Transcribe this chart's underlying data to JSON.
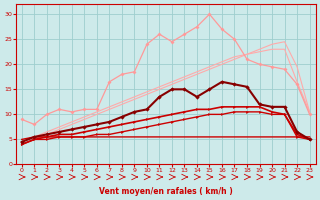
{
  "x": [
    0,
    1,
    2,
    3,
    4,
    5,
    6,
    7,
    8,
    9,
    10,
    11,
    12,
    13,
    14,
    15,
    16,
    17,
    18,
    19,
    20,
    21,
    22,
    23
  ],
  "line_dark_red_bottom": [
    4.0,
    5.0,
    5.0,
    5.5,
    5.5,
    5.5,
    6.0,
    6.0,
    6.5,
    7.0,
    7.5,
    8.0,
    8.5,
    9.0,
    9.5,
    10.0,
    10.0,
    10.5,
    10.5,
    10.5,
    10.0,
    10.0,
    5.5,
    5.0
  ],
  "line_dark_red_mid1": [
    4.0,
    5.0,
    5.5,
    6.0,
    6.0,
    6.5,
    7.0,
    7.5,
    8.0,
    8.5,
    9.0,
    9.5,
    10.0,
    10.5,
    11.0,
    11.0,
    11.5,
    11.5,
    11.5,
    11.5,
    10.5,
    10.0,
    6.0,
    5.0
  ],
  "line_dark_red_mid2": [
    4.5,
    5.5,
    6.0,
    6.5,
    7.0,
    7.5,
    8.0,
    8.5,
    9.5,
    10.5,
    11.0,
    13.5,
    15.0,
    15.0,
    13.5,
    15.0,
    16.5,
    16.0,
    15.5,
    12.0,
    11.5,
    11.5,
    6.5,
    5.0
  ],
  "line_flat_red": [
    5.0,
    5.5,
    5.5,
    5.5,
    5.5,
    5.5,
    5.5,
    5.5,
    5.5,
    5.5,
    5.5,
    5.5,
    5.5,
    5.5,
    5.5,
    5.5,
    5.5,
    5.5,
    5.5,
    5.5,
    5.5,
    5.5,
    5.5,
    5.5
  ],
  "line_pink_diag1": [
    4.0,
    5.0,
    6.0,
    7.0,
    8.0,
    9.0,
    10.0,
    11.0,
    12.0,
    13.0,
    14.0,
    15.0,
    16.0,
    17.0,
    18.0,
    19.0,
    20.0,
    21.0,
    22.0,
    23.0,
    24.0,
    24.5,
    19.5,
    10.5
  ],
  "line_pink_diag2": [
    4.5,
    5.5,
    6.5,
    7.5,
    8.5,
    9.5,
    10.5,
    11.5,
    12.5,
    13.5,
    14.5,
    15.5,
    16.5,
    17.5,
    18.5,
    19.5,
    20.5,
    21.5,
    22.0,
    22.5,
    23.0,
    23.0,
    16.5,
    10.5
  ],
  "line_pink_high": [
    9.0,
    8.0,
    10.0,
    11.0,
    10.5,
    11.0,
    11.0,
    16.5,
    18.0,
    18.5,
    24.0,
    26.0,
    24.5,
    26.0,
    27.5,
    30.0,
    27.0,
    25.0,
    21.0,
    20.0,
    19.5,
    19.0,
    16.0,
    10.0
  ],
  "bg_color": "#cdeaea",
  "grid_color": "#9ecece",
  "xlabel": "Vent moyen/en rafales ( km/h )",
  "ylim": [
    0,
    32
  ],
  "xlim": [
    -0.5,
    23.5
  ],
  "yticks": [
    0,
    5,
    10,
    15,
    20,
    25,
    30
  ],
  "xticks": [
    0,
    1,
    2,
    3,
    4,
    5,
    6,
    7,
    8,
    9,
    10,
    11,
    12,
    13,
    14,
    15,
    16,
    17,
    18,
    19,
    20,
    21,
    22,
    23
  ]
}
